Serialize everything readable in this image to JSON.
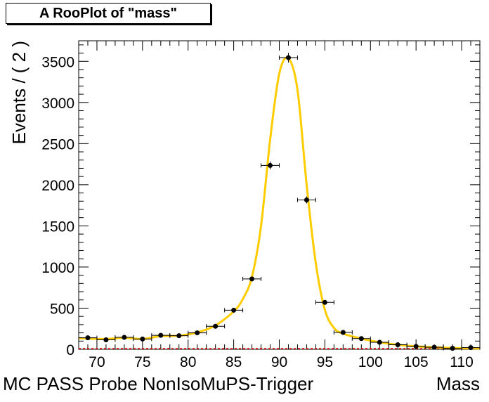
{
  "title": "A RooPlot of \"mass\"",
  "chart_data": {
    "type": "line",
    "title": "A RooPlot of \"mass\"",
    "xlabel_left": "MC PASS  Probe NonIsoMuPS-Trigger",
    "xlabel_right": "Mass",
    "ylabel": "Events / ( 2 )",
    "xlim": [
      68,
      112
    ],
    "ylim": [
      0,
      3750
    ],
    "xticks": [
      70,
      75,
      80,
      85,
      90,
      95,
      100,
      105,
      110
    ],
    "yticks": [
      0,
      500,
      1000,
      1500,
      2000,
      2500,
      3000,
      3500
    ],
    "grid": false,
    "data_points": {
      "x": [
        69,
        71,
        73,
        75,
        77,
        79,
        81,
        83,
        85,
        87,
        89,
        91,
        93,
        95,
        97,
        99,
        101,
        103,
        105,
        107,
        109,
        111
      ],
      "y": [
        140,
        115,
        145,
        125,
        170,
        165,
        200,
        280,
        475,
        855,
        2235,
        3545,
        1815,
        570,
        205,
        130,
        85,
        55,
        35,
        25,
        12,
        20
      ],
      "xerr": 1
    },
    "fit_curve": {
      "color": "#ffcc00",
      "x": [
        68,
        69,
        71,
        73,
        75,
        77,
        79,
        81,
        83,
        85,
        86,
        87,
        88,
        89,
        90,
        91,
        92,
        93,
        94,
        95,
        96,
        97,
        99,
        101,
        103,
        105,
        107,
        109,
        112
      ],
      "y": [
        135,
        130,
        125,
        140,
        125,
        160,
        165,
        205,
        290,
        460,
        610,
        880,
        1500,
        2550,
        3350,
        3535,
        3150,
        2000,
        1050,
        480,
        260,
        190,
        130,
        85,
        55,
        35,
        25,
        15,
        10
      ]
    },
    "bottom_line_color": "#ff0000"
  }
}
